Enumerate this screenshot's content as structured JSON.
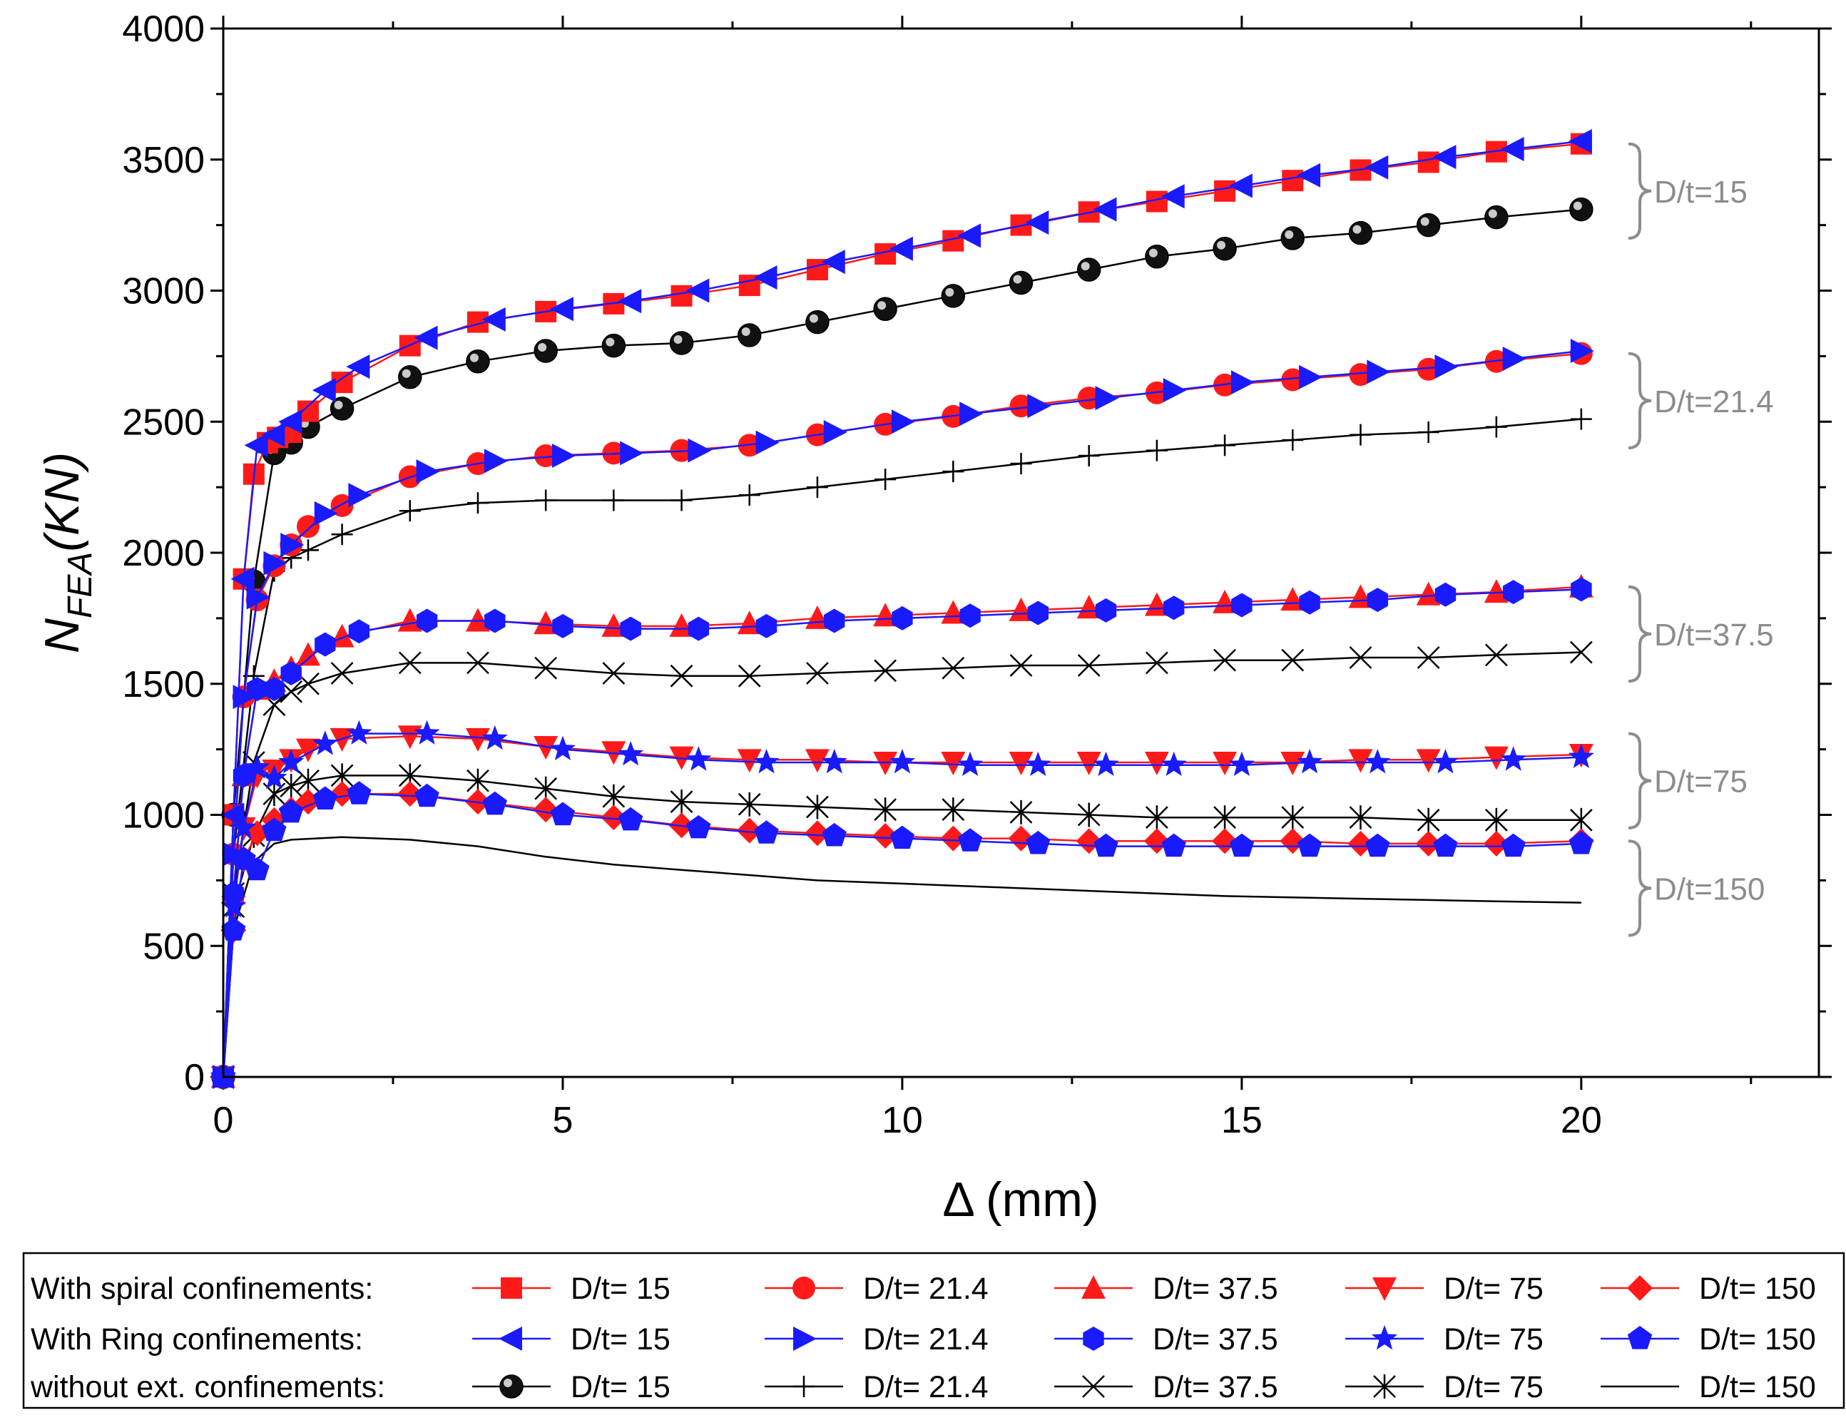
{
  "chart_data": {
    "type": "line",
    "xlabel": "Δ (mm)",
    "ylabel_main": "N",
    "ylabel_sub": "FEA",
    "ylabel_unit": "(KN)",
    "xlim": [
      0,
      23.5
    ],
    "ylim": [
      0,
      4000
    ],
    "xticks": [
      0,
      5,
      10,
      15,
      20
    ],
    "yticks": [
      0,
      500,
      1000,
      1500,
      2000,
      2500,
      3000,
      3500,
      4000
    ],
    "colors": {
      "spiral": "#ff1a1a",
      "ring": "#1a1aff",
      "none": "#000000",
      "annotation": "#8c8c8c"
    },
    "annotations": [
      {
        "label": "D/t=15",
        "y_top": 3560,
        "y_bottom": 3200
      },
      {
        "label": "D/t=21.4",
        "y_top": 2760,
        "y_bottom": 2400
      },
      {
        "label": "D/t=37.5",
        "y_top": 1870,
        "y_bottom": 1510
      },
      {
        "label": "D/t=75",
        "y_top": 1310,
        "y_bottom": 950
      },
      {
        "label": "D/t=150",
        "y_top": 900,
        "y_bottom": 540
      }
    ],
    "legend": {
      "rows": [
        {
          "label": "With spiral confinements:",
          "group": "spiral"
        },
        {
          "label": "With Ring confinements:",
          "group": "ring"
        },
        {
          "label": "without ext. confinements:",
          "group": "none"
        }
      ],
      "entries": [
        "D/t= 15",
        "D/t= 21.4",
        "D/t= 37.5",
        "D/t= 75",
        "D/t= 150"
      ]
    },
    "series": [
      {
        "name": "With spiral confinements: D/t= 15",
        "group": "spiral",
        "marker": "square",
        "x": [
          0,
          0.15,
          0.3,
          0.45,
          0.65,
          0.8,
          1.0,
          1.25,
          1.75,
          2.75,
          3.75,
          4.75,
          5.75,
          6.75,
          7.75,
          8.75,
          9.75,
          10.75,
          11.75,
          12.75,
          13.75,
          14.75,
          15.75,
          16.75,
          17.75,
          18.75,
          20.0
        ],
        "y": [
          0,
          1000,
          1900,
          2300,
          2420,
          2440,
          2460,
          2540,
          2650,
          2790,
          2880,
          2920,
          2950,
          2980,
          3020,
          3080,
          3140,
          3190,
          3250,
          3300,
          3340,
          3380,
          3420,
          3460,
          3490,
          3530,
          3560
        ]
      },
      {
        "name": "With spiral confinements: D/t= 21.4",
        "group": "spiral",
        "marker": "circle",
        "x": [
          0,
          0.15,
          0.3,
          0.5,
          0.75,
          1.0,
          1.25,
          1.75,
          2.75,
          3.75,
          4.75,
          5.75,
          6.75,
          7.75,
          8.75,
          9.75,
          10.75,
          11.75,
          12.75,
          13.75,
          14.75,
          15.75,
          16.75,
          17.75,
          18.75,
          20.0
        ],
        "y": [
          0,
          850,
          1450,
          1820,
          1950,
          2030,
          2100,
          2180,
          2290,
          2340,
          2370,
          2380,
          2390,
          2410,
          2450,
          2490,
          2520,
          2560,
          2590,
          2610,
          2640,
          2660,
          2680,
          2700,
          2730,
          2760
        ]
      },
      {
        "name": "With spiral confinements: D/t= 37.5",
        "group": "spiral",
        "marker": "triangle-up",
        "x": [
          0,
          0.15,
          0.3,
          0.5,
          0.75,
          1.0,
          1.25,
          1.75,
          2.75,
          3.75,
          4.75,
          5.75,
          6.75,
          7.75,
          8.75,
          9.75,
          10.75,
          11.75,
          12.75,
          13.75,
          14.75,
          15.75,
          16.75,
          17.75,
          18.75,
          20.0
        ],
        "y": [
          0,
          700,
          1150,
          1480,
          1510,
          1560,
          1610,
          1680,
          1740,
          1740,
          1730,
          1720,
          1720,
          1730,
          1750,
          1760,
          1770,
          1780,
          1790,
          1800,
          1810,
          1820,
          1830,
          1840,
          1850,
          1870
        ]
      },
      {
        "name": "With spiral confinements: D/t= 75",
        "group": "spiral",
        "marker": "triangle-down",
        "x": [
          0,
          0.15,
          0.3,
          0.5,
          0.75,
          1.0,
          1.25,
          1.75,
          2.75,
          3.75,
          4.75,
          5.75,
          6.75,
          7.75,
          8.75,
          9.75,
          10.75,
          11.75,
          12.75,
          13.75,
          14.75,
          15.75,
          16.75,
          17.75,
          18.75,
          20.0
        ],
        "y": [
          0,
          650,
          950,
          1150,
          1170,
          1210,
          1250,
          1290,
          1300,
          1290,
          1260,
          1240,
          1220,
          1210,
          1210,
          1200,
          1200,
          1200,
          1200,
          1200,
          1200,
          1200,
          1210,
          1210,
          1220,
          1230
        ]
      },
      {
        "name": "With spiral confinements: D/t= 150",
        "group": "spiral",
        "marker": "diamond",
        "x": [
          0,
          0.15,
          0.3,
          0.5,
          0.75,
          1.0,
          1.25,
          1.75,
          2.75,
          3.75,
          4.75,
          5.75,
          6.75,
          7.75,
          8.75,
          9.75,
          10.75,
          11.75,
          12.75,
          13.75,
          14.75,
          15.75,
          16.75,
          17.75,
          18.75,
          20.0
        ],
        "y": [
          0,
          560,
          830,
          930,
          980,
          1020,
          1050,
          1080,
          1080,
          1050,
          1020,
          990,
          960,
          940,
          930,
          920,
          910,
          910,
          900,
          900,
          900,
          900,
          890,
          890,
          890,
          900
        ]
      },
      {
        "name": "With Ring confinements: D/t= 15",
        "group": "ring",
        "marker": "triangle-left",
        "x": [
          0,
          0.15,
          0.3,
          0.5,
          0.75,
          1.0,
          1.5,
          2.0,
          3.0,
          4.0,
          5.0,
          6.0,
          7.0,
          8.0,
          9.0,
          10.0,
          11.0,
          12.0,
          13.0,
          14.0,
          15.0,
          16.0,
          17.0,
          18.0,
          19.0,
          20.0
        ],
        "y": [
          0,
          1000,
          1900,
          2410,
          2450,
          2500,
          2620,
          2710,
          2820,
          2890,
          2930,
          2960,
          3000,
          3050,
          3110,
          3160,
          3210,
          3260,
          3310,
          3360,
          3400,
          3440,
          3470,
          3510,
          3540,
          3570
        ]
      },
      {
        "name": "With Ring confinements: D/t= 21.4",
        "group": "ring",
        "marker": "triangle-right",
        "x": [
          0,
          0.15,
          0.3,
          0.5,
          0.75,
          1.0,
          1.5,
          2.0,
          3.0,
          4.0,
          5.0,
          6.0,
          7.0,
          8.0,
          9.0,
          10.0,
          11.0,
          12.0,
          13.0,
          14.0,
          15.0,
          16.0,
          17.0,
          18.0,
          19.0,
          20.0
        ],
        "y": [
          0,
          850,
          1450,
          1830,
          1960,
          2030,
          2150,
          2220,
          2310,
          2350,
          2370,
          2380,
          2390,
          2420,
          2460,
          2500,
          2530,
          2560,
          2590,
          2620,
          2650,
          2670,
          2690,
          2710,
          2740,
          2770
        ]
      },
      {
        "name": "With Ring confinements: D/t= 37.5",
        "group": "ring",
        "marker": "hexagon",
        "x": [
          0,
          0.15,
          0.3,
          0.5,
          0.75,
          1.0,
          1.5,
          2.0,
          3.0,
          4.0,
          5.0,
          6.0,
          7.0,
          8.0,
          9.0,
          10.0,
          11.0,
          12.0,
          13.0,
          14.0,
          15.0,
          16.0,
          17.0,
          18.0,
          19.0,
          20.0
        ],
        "y": [
          0,
          700,
          1150,
          1480,
          1480,
          1540,
          1650,
          1700,
          1740,
          1740,
          1720,
          1710,
          1710,
          1720,
          1740,
          1750,
          1760,
          1770,
          1780,
          1790,
          1800,
          1810,
          1820,
          1840,
          1850,
          1860
        ]
      },
      {
        "name": "With Ring confinements: D/t= 75",
        "group": "ring",
        "marker": "star",
        "x": [
          0,
          0.15,
          0.3,
          0.5,
          0.75,
          1.0,
          1.5,
          2.0,
          3.0,
          4.0,
          5.0,
          6.0,
          7.0,
          8.0,
          9.0,
          10.0,
          11.0,
          12.0,
          13.0,
          14.0,
          15.0,
          16.0,
          17.0,
          18.0,
          19.0,
          20.0
        ],
        "y": [
          0,
          650,
          950,
          1180,
          1140,
          1200,
          1270,
          1310,
          1310,
          1290,
          1250,
          1230,
          1210,
          1200,
          1200,
          1200,
          1190,
          1190,
          1190,
          1190,
          1190,
          1200,
          1200,
          1200,
          1210,
          1220
        ]
      },
      {
        "name": "With Ring confinements: D/t= 150",
        "group": "ring",
        "marker": "pentagon",
        "x": [
          0,
          0.15,
          0.3,
          0.5,
          0.75,
          1.0,
          1.5,
          2.0,
          3.0,
          4.0,
          5.0,
          6.0,
          7.0,
          8.0,
          9.0,
          10.0,
          11.0,
          12.0,
          13.0,
          14.0,
          15.0,
          16.0,
          17.0,
          18.0,
          19.0,
          20.0
        ],
        "y": [
          0,
          560,
          830,
          790,
          940,
          1010,
          1060,
          1080,
          1070,
          1040,
          1000,
          980,
          950,
          930,
          920,
          910,
          900,
          890,
          880,
          880,
          880,
          880,
          880,
          880,
          880,
          890
        ]
      },
      {
        "name": "without ext. confinements: D/t= 15",
        "group": "none",
        "marker": "sphere",
        "x": [
          0,
          0.15,
          0.45,
          0.75,
          1.0,
          1.25,
          1.75,
          2.75,
          3.75,
          4.75,
          5.75,
          6.75,
          7.75,
          8.75,
          9.75,
          10.75,
          11.75,
          12.75,
          13.75,
          14.75,
          15.75,
          16.75,
          17.75,
          18.75,
          20.0
        ],
        "y": [
          0,
          1000,
          1890,
          2380,
          2420,
          2480,
          2550,
          2670,
          2730,
          2770,
          2790,
          2800,
          2830,
          2880,
          2930,
          2980,
          3030,
          3080,
          3130,
          3160,
          3200,
          3220,
          3250,
          3280,
          3310
        ]
      },
      {
        "name": "without ext. confinements: D/t= 21.4",
        "group": "none",
        "marker": "plus",
        "x": [
          0,
          0.15,
          0.45,
          0.75,
          1.0,
          1.25,
          1.75,
          2.75,
          3.75,
          4.75,
          5.75,
          6.75,
          7.75,
          8.75,
          9.75,
          10.75,
          11.75,
          12.75,
          13.75,
          14.75,
          15.75,
          16.75,
          17.75,
          18.75,
          20.0
        ],
        "y": [
          0,
          850,
          1530,
          1930,
          1980,
          2010,
          2070,
          2160,
          2190,
          2200,
          2200,
          2200,
          2220,
          2250,
          2280,
          2310,
          2340,
          2370,
          2390,
          2410,
          2430,
          2450,
          2460,
          2480,
          2510
        ]
      },
      {
        "name": "without ext. confinements: D/t= 37.5",
        "group": "none",
        "marker": "x",
        "x": [
          0,
          0.15,
          0.45,
          0.75,
          1.0,
          1.25,
          1.75,
          2.75,
          3.75,
          4.75,
          5.75,
          6.75,
          7.75,
          8.75,
          9.75,
          10.75,
          11.75,
          12.75,
          13.75,
          14.75,
          15.75,
          16.75,
          17.75,
          18.75,
          20.0
        ],
        "y": [
          0,
          700,
          1200,
          1420,
          1470,
          1500,
          1540,
          1580,
          1580,
          1560,
          1540,
          1530,
          1530,
          1540,
          1550,
          1560,
          1570,
          1570,
          1580,
          1590,
          1590,
          1600,
          1600,
          1610,
          1620
        ]
      },
      {
        "name": "without ext. confinements: D/t= 75",
        "group": "none",
        "marker": "asterisk",
        "x": [
          0,
          0.15,
          0.45,
          0.75,
          1.0,
          1.25,
          1.75,
          2.75,
          3.75,
          4.75,
          5.75,
          6.75,
          7.75,
          8.75,
          9.75,
          10.75,
          11.75,
          12.75,
          13.75,
          14.75,
          15.75,
          16.75,
          17.75,
          18.75,
          20.0
        ],
        "y": [
          0,
          650,
          920,
          1080,
          1110,
          1130,
          1150,
          1150,
          1130,
          1100,
          1070,
          1050,
          1040,
          1030,
          1020,
          1020,
          1010,
          1000,
          990,
          990,
          990,
          990,
          980,
          980,
          980
        ]
      },
      {
        "name": "without ext. confinements: D/t= 150",
        "group": "none",
        "marker": "none",
        "x": [
          0,
          0.15,
          0.45,
          0.75,
          1.0,
          1.75,
          2.75,
          3.75,
          4.75,
          5.75,
          6.75,
          7.75,
          8.75,
          9.75,
          10.75,
          11.75,
          12.75,
          13.75,
          14.75,
          15.75,
          16.75,
          17.75,
          18.75,
          20.0
        ],
        "y": [
          0,
          560,
          820,
          890,
          905,
          915,
          905,
          880,
          840,
          810,
          790,
          770,
          750,
          740,
          730,
          720,
          710,
          700,
          690,
          685,
          680,
          675,
          670,
          665
        ]
      }
    ]
  }
}
